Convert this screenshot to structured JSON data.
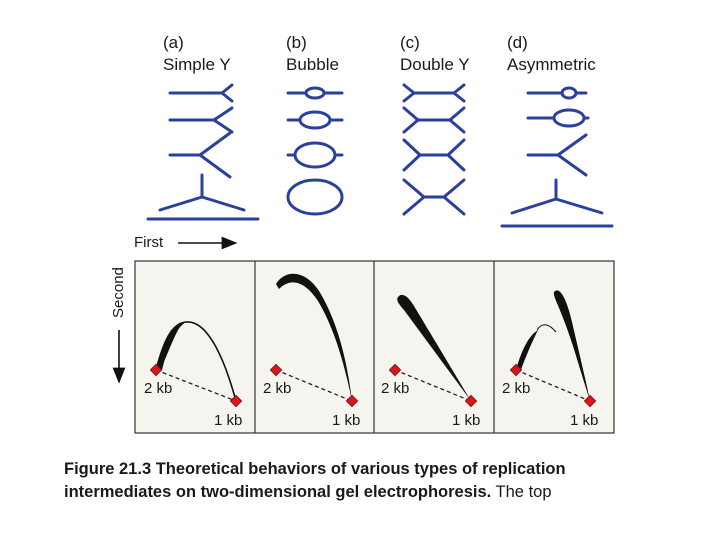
{
  "columns": [
    {
      "letter": "(a)",
      "name": "Simple Y"
    },
    {
      "letter": "(b)",
      "name": "Bubble"
    },
    {
      "letter": "(c)",
      "name": "Double Y"
    },
    {
      "letter": "(d)",
      "name": "Asymmetric"
    }
  ],
  "axes": {
    "first": "First",
    "second": "Second"
  },
  "markers": {
    "small": "2 kb",
    "large": "1 kb"
  },
  "caption": {
    "bold": "Figure 21.3 Theoretical behaviors of various types of replication intermediates on two-dimensional gel electrophoresis.",
    "normal": " The top"
  },
  "colors": {
    "dna": "#2b3f9c",
    "arc": "#111111",
    "marker": "#d9161c",
    "panel_bg": "#f5f4ef"
  }
}
